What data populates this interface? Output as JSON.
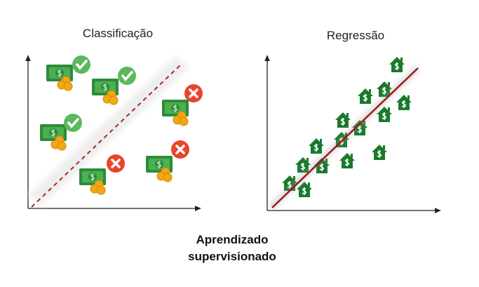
{
  "panels": [
    {
      "title": "Classificação"
    },
    {
      "title": "Regressão"
    }
  ],
  "caption": {
    "lines": [
      "Aprendizado",
      "supervisionado"
    ]
  }
}
